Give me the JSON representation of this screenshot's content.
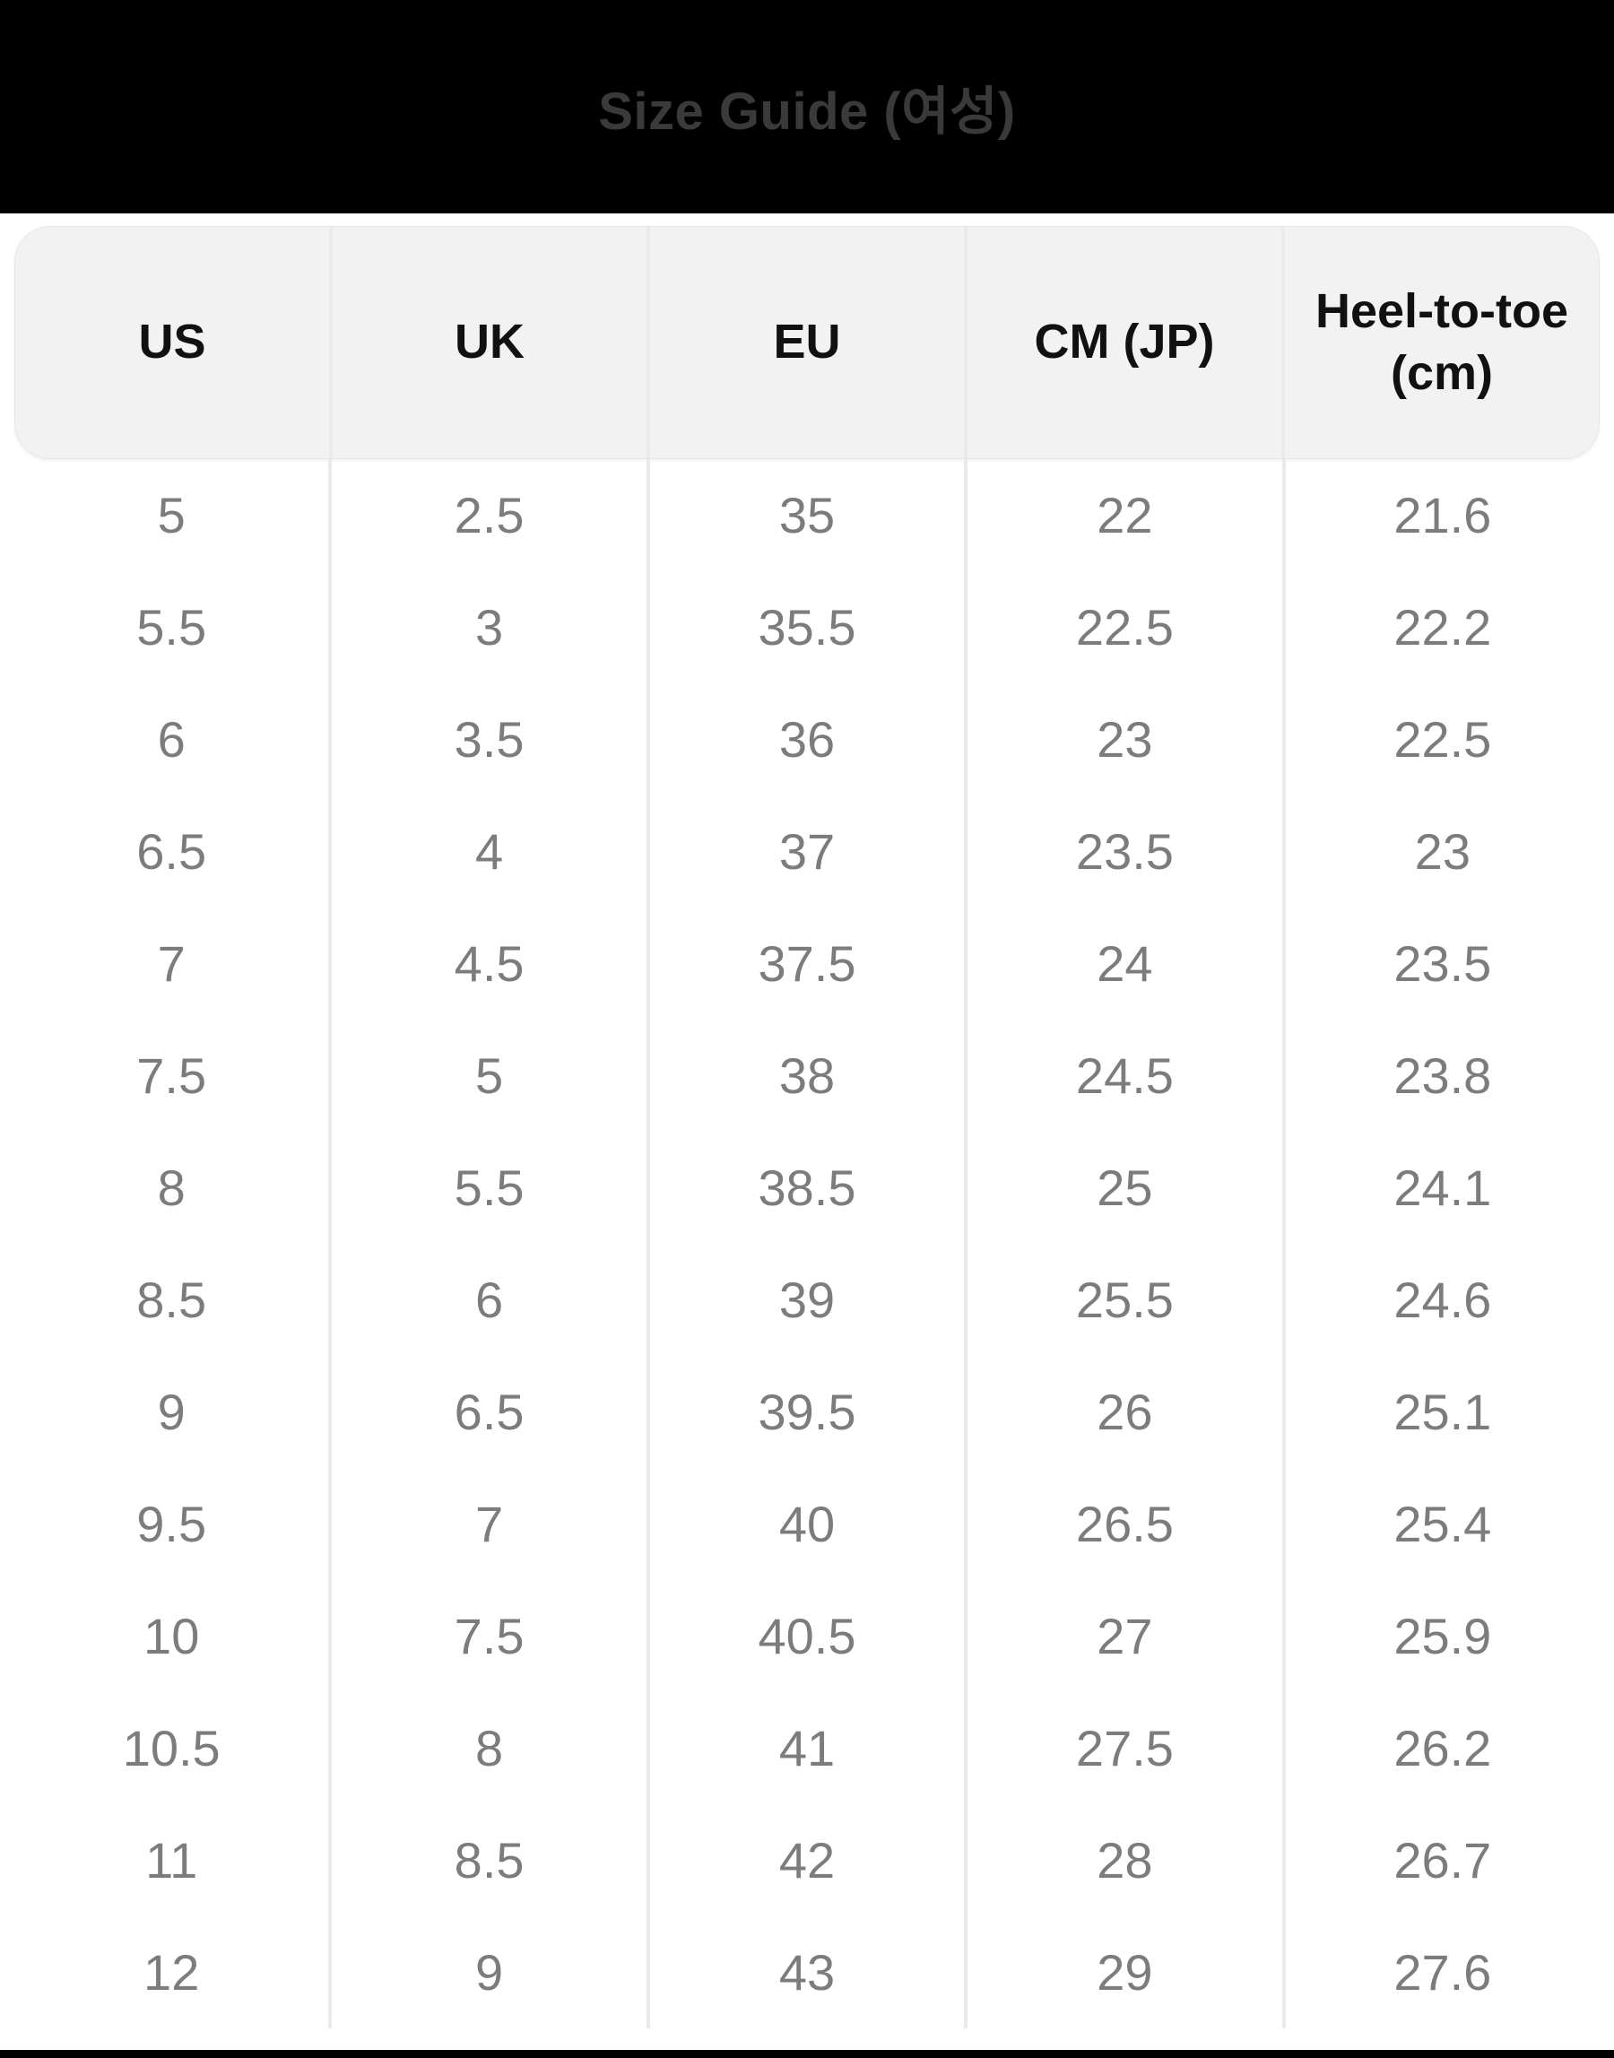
{
  "modal": {
    "title": "Size Guide (여성)"
  },
  "table": {
    "columns": [
      "US",
      "UK",
      "EU",
      "CM (JP)",
      "Heel-to-toe (cm)"
    ],
    "rows": [
      [
        "5",
        "2.5",
        "35",
        "22",
        "21.6"
      ],
      [
        "5.5",
        "3",
        "35.5",
        "22.5",
        "22.2"
      ],
      [
        "6",
        "3.5",
        "36",
        "23",
        "22.5"
      ],
      [
        "6.5",
        "4",
        "37",
        "23.5",
        "23"
      ],
      [
        "7",
        "4.5",
        "37.5",
        "24",
        "23.5"
      ],
      [
        "7.5",
        "5",
        "38",
        "24.5",
        "23.8"
      ],
      [
        "8",
        "5.5",
        "38.5",
        "25",
        "24.1"
      ],
      [
        "8.5",
        "6",
        "39",
        "25.5",
        "24.6"
      ],
      [
        "9",
        "6.5",
        "39.5",
        "26",
        "25.1"
      ],
      [
        "9.5",
        "7",
        "40",
        "26.5",
        "25.4"
      ],
      [
        "10",
        "7.5",
        "40.5",
        "27",
        "25.9"
      ],
      [
        "10.5",
        "8",
        "41",
        "27.5",
        "26.2"
      ],
      [
        "11",
        "8.5",
        "42",
        "28",
        "26.7"
      ],
      [
        "12",
        "9",
        "43",
        "29",
        "27.6"
      ]
    ]
  },
  "colors": {
    "backdrop": "#000000",
    "title_text": "#3a3a3a",
    "header_bg": "#f2f2f2",
    "header_border": "#e7e7e7",
    "header_text": "#111111",
    "data_text": "#7c7c7c",
    "divider": "#eaeaea",
    "page_bg": "#ffffff"
  }
}
